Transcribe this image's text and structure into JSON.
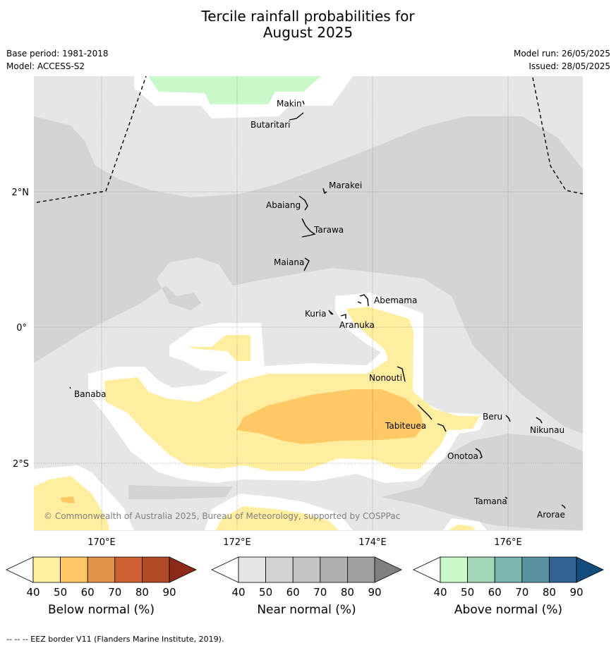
{
  "title_line1": "Tercile rainfall probabilities for",
  "title_line2": "August 2025",
  "meta": {
    "base_period": "Base period: 1981-2018",
    "model": "Model: ACCESS-S2",
    "model_run": "Model run: 26/05/2025",
    "issued": "Issued: 28/05/2025"
  },
  "axis": {
    "lon_ticks": [
      "170°E",
      "172°E",
      "174°E",
      "176°E"
    ],
    "lat_ticks": [
      "2°N",
      "0°",
      "2°S"
    ]
  },
  "places": {
    "makin": "Makin",
    "butaritari": "Butaritari",
    "marakei": "Marakei",
    "abaiang": "Abaiang",
    "tarawa": "Tarawa",
    "maiana": "Maiana",
    "abemama": "Abemama",
    "kuria": "Kuria",
    "aranuka": "Aranuka",
    "nonouti": "Nonouti",
    "banaba": "Banaba",
    "tabiteuea": "Tabiteuea",
    "beru": "Beru",
    "nikunau": "Nikunau",
    "onotoa": "Onotoa",
    "tamana": "Tamana",
    "arorae": "Arorae"
  },
  "copyright": "© Commonwealth of Australia 2025, Bureau of Meteorology, supported by COSPPac",
  "colorbars": [
    {
      "label": "Below normal (%)",
      "ticks": [
        "40",
        "50",
        "60",
        "70",
        "80",
        "90"
      ],
      "colors": [
        "#ffffff",
        "#ffeda0",
        "#fec965",
        "#e0914a",
        "#cd6133",
        "#b04a27",
        "#8c2a17"
      ]
    },
    {
      "label": "Near normal (%)",
      "ticks": [
        "40",
        "50",
        "60",
        "70",
        "80",
        "90"
      ],
      "colors": [
        "#ffffff",
        "#e6e6e6",
        "#d4d4d4",
        "#c4c4c4",
        "#b0b0b0",
        "#a0a0a0",
        "#808080"
      ]
    },
    {
      "label": "Above normal (%)",
      "ticks": [
        "40",
        "50",
        "60",
        "70",
        "80",
        "90"
      ],
      "colors": [
        "#ffffff",
        "#c9f8c9",
        "#a3d5b9",
        "#7ab4ae",
        "#5a919f",
        "#2f6394",
        "#144c7d"
      ]
    }
  ],
  "footer": "--  --  -- EEZ border V11 (Flanders Marine Institute, 2019)."
}
